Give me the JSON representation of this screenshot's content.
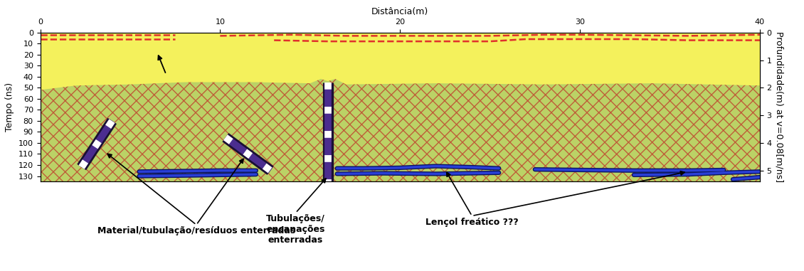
{
  "chart_data": {
    "type": "radargram",
    "color": "#f4f15c",
    "xlabel": "Distância(m)",
    "ylabel": "Tempo (ns)",
    "y2label": "Profundidade(m) at v=0.08[m/ns]",
    "xlim": [
      0,
      40
    ],
    "xticks": [
      0,
      10,
      20,
      30,
      40
    ],
    "ylim": [
      0,
      135
    ],
    "yticks": [
      0,
      10,
      20,
      30,
      40,
      50,
      60,
      70,
      80,
      90,
      100,
      110,
      120,
      130
    ],
    "y2lim": [
      0,
      5.4
    ],
    "y2ticks": [
      0,
      1,
      2,
      3,
      4,
      5
    ],
    "series": [
      {
        "type": "zone",
        "color": "#a9c86a",
        "x": [
          0,
          2,
          5,
          8,
          12,
          15,
          15.6,
          16,
          16.4,
          17,
          22,
          28,
          34,
          40
        ],
        "values": [
          52,
          48,
          47,
          45,
          45,
          46,
          42,
          44,
          42,
          47,
          46,
          47,
          46,
          48
        ]
      },
      {
        "type": "line",
        "color": "#e0302c",
        "line_style": "dashed",
        "x": [
          0,
          7.5
        ],
        "values": [
          2,
          2
        ]
      },
      {
        "type": "line",
        "color": "#e0302c",
        "line_style": "dashed",
        "x": [
          0,
          7.5
        ],
        "values": [
          6,
          6
        ]
      },
      {
        "type": "line",
        "color": "#e0302c",
        "line_style": "dashed",
        "x": [
          10,
          14,
          17,
          25,
          28,
          30,
          36,
          40
        ],
        "values": [
          3,
          2,
          3,
          3,
          2,
          2,
          3,
          2
        ]
      },
      {
        "type": "line",
        "color": "#e0302c",
        "line_style": "dashed",
        "x": [
          13,
          16,
          20,
          25,
          27,
          30,
          33,
          36,
          40
        ],
        "values": [
          7,
          8,
          8,
          8,
          6,
          6,
          6,
          7,
          7
        ]
      },
      {
        "type": "reflector",
        "color": "#2a3fd6",
        "x": [
          5.5,
          8,
          10,
          12
        ],
        "values": [
          126,
          125.5,
          125,
          125
        ]
      },
      {
        "type": "reflector",
        "color": "#2a3fd6",
        "x": [
          5.5,
          8,
          10,
          12
        ],
        "values": [
          130,
          129.5,
          129,
          128.5
        ]
      },
      {
        "type": "reflector",
        "color": "#2a3fd6",
        "x": [
          16.5,
          18,
          20,
          22,
          24,
          25.5
        ],
        "values": [
          123,
          123,
          122.5,
          121,
          122,
          123
        ]
      },
      {
        "type": "reflector",
        "color": "#2a3fd6",
        "x": [
          16.5,
          19,
          22,
          25.5
        ],
        "values": [
          128,
          127.5,
          128,
          127
        ]
      },
      {
        "type": "reflector",
        "color": "#2a3fd6",
        "x": [
          27.5,
          30,
          33,
          36,
          38
        ],
        "values": [
          124,
          124.5,
          125,
          125,
          124.5
        ]
      },
      {
        "type": "reflector",
        "color": "#2a3fd6",
        "x": [
          33,
          36,
          38,
          40
        ],
        "values": [
          129,
          128.5,
          127,
          126
        ]
      },
      {
        "type": "reflector",
        "color": "#2a3fd6",
        "x": [
          38.5,
          40
        ],
        "values": [
          133,
          131
        ]
      },
      {
        "type": "band",
        "color": "#4b2d8f",
        "x": [
          2.3,
          4.0
        ],
        "values": [
          122,
          80
        ]
      },
      {
        "type": "band",
        "color": "#4b2d8f",
        "x": [
          10.3,
          12.8
        ],
        "values": [
          95,
          125
        ]
      },
      {
        "type": "band",
        "color": "#4b2d8f",
        "x": [
          16,
          16
        ],
        "values": [
          45,
          135
        ]
      }
    ],
    "annotations": [
      {
        "text": "Material/tubulação/resíduos enterradas",
        "points": [
          [
            3.6,
            108
          ],
          [
            11.4,
            112
          ]
        ]
      },
      {
        "text": "Tubulações/\nencanações\nenterradas",
        "points": [
          [
            16,
            130
          ]
        ]
      },
      {
        "text": "Lençol freático ???",
        "points": [
          [
            22.5,
            124
          ],
          [
            36,
            126
          ]
        ]
      }
    ],
    "arrows": [
      {
        "from": [
          7,
          38
        ],
        "to": [
          6.5,
          18
        ]
      }
    ]
  }
}
